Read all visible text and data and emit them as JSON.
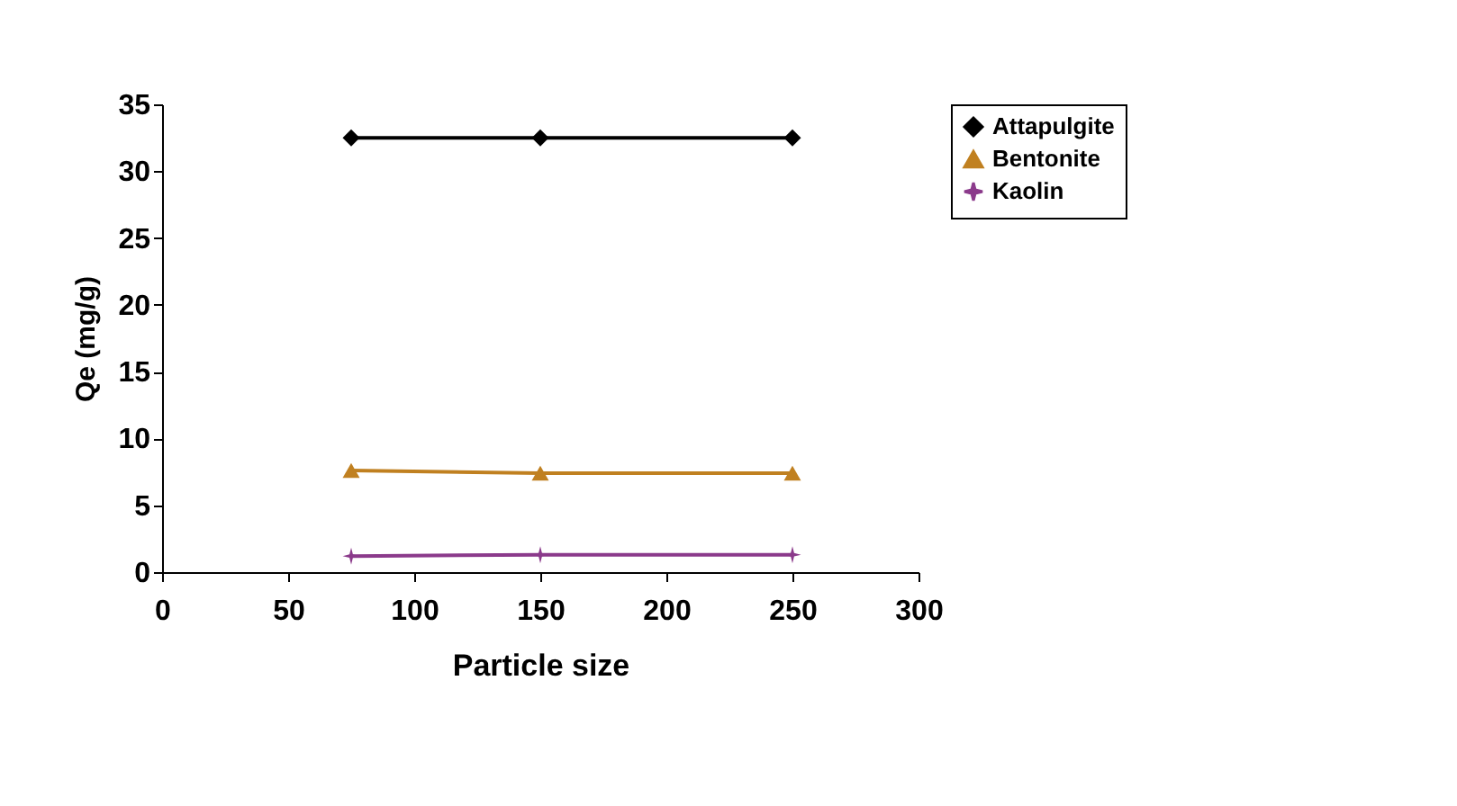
{
  "chart_data": {
    "type": "line",
    "xlabel": "Particle size",
    "ylabel": "Qe (mg/g)",
    "x": [
      75,
      150,
      250
    ],
    "series": [
      {
        "name": "Attapulgite",
        "color": "#000000",
        "marker": "diamond",
        "values": [
          32.5,
          32.5,
          32.5
        ]
      },
      {
        "name": "Bentonite",
        "color": "#c08020",
        "marker": "triangle",
        "values": [
          7.6,
          7.4,
          7.4
        ]
      },
      {
        "name": "Kaolin",
        "color": "#8b3a8b",
        "marker": "star",
        "values": [
          1.2,
          1.3,
          1.3
        ]
      }
    ],
    "xlim": [
      0,
      300
    ],
    "xticks": [
      0,
      50,
      100,
      150,
      200,
      250,
      300
    ],
    "ylim": [
      0,
      35
    ],
    "yticks": [
      0,
      5,
      10,
      15,
      20,
      25,
      30,
      35
    ],
    "grid": false,
    "legend": "right"
  }
}
